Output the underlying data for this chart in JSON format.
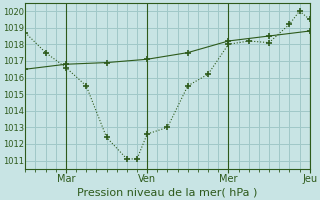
{
  "xlabel": "Pression niveau de la mer( hPa )",
  "bg_color": "#c8e4e4",
  "grid_color": "#a0c8c8",
  "line_color": "#2d5a1b",
  "xlim": [
    0,
    168
  ],
  "ylim": [
    1010.5,
    1020.5
  ],
  "yticks": [
    1011,
    1012,
    1013,
    1014,
    1015,
    1016,
    1017,
    1018,
    1019,
    1020
  ],
  "xtick_major_positions": [
    24,
    72,
    120,
    168
  ],
  "xtick_major_labels": [
    "Mar",
    "Ven",
    "Mer",
    "Jeu"
  ],
  "xtick_minor_positions": [
    0,
    6,
    12,
    18,
    24,
    30,
    36,
    42,
    48,
    54,
    60,
    66,
    72,
    78,
    84,
    90,
    96,
    102,
    108,
    114,
    120,
    126,
    132,
    138,
    144,
    150,
    156,
    162,
    168
  ],
  "line1_x": [
    0,
    12,
    24,
    36,
    48,
    60,
    66,
    72,
    84,
    96,
    108,
    120,
    132,
    144,
    156,
    162,
    168
  ],
  "line1_y": [
    1018.7,
    1017.5,
    1016.6,
    1015.5,
    1012.4,
    1011.1,
    1011.1,
    1012.6,
    1013.0,
    1015.5,
    1016.2,
    1018.0,
    1018.2,
    1018.1,
    1019.2,
    1020.0,
    1019.5
  ],
  "line2_x": [
    0,
    24,
    48,
    72,
    96,
    120,
    144,
    168
  ],
  "line2_y": [
    1016.5,
    1016.8,
    1016.9,
    1017.1,
    1017.5,
    1018.2,
    1018.5,
    1018.8
  ],
  "figsize": [
    3.2,
    2.0
  ],
  "dpi": 100
}
